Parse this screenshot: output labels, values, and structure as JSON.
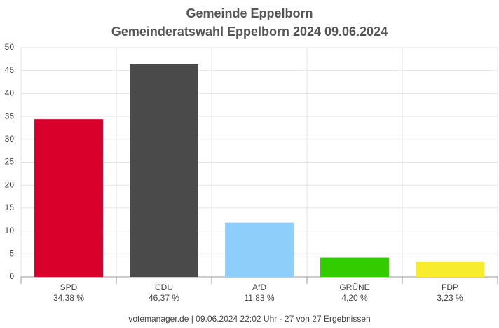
{
  "chart_data": {
    "type": "bar",
    "title": "Gemeinde Eppelborn",
    "subtitle": "Gemeinderatswahl Eppelborn 2024 09.06.2024",
    "categories": [
      "SPD",
      "CDU",
      "AfD",
      "GRÜNE",
      "FDP"
    ],
    "values": [
      34.38,
      46.37,
      11.83,
      4.2,
      3.23
    ],
    "value_labels": [
      "34,38 %",
      "46,37 %",
      "11,83 %",
      "4,20 %",
      "3,23 %"
    ],
    "colors": [
      "#d8002a",
      "#4a4a4a",
      "#8ecefa",
      "#33cc00",
      "#f8ec2e"
    ],
    "ylim": [
      0,
      50
    ],
    "yticks": [
      0,
      5,
      10,
      15,
      20,
      25,
      30,
      35,
      40,
      45,
      50
    ],
    "grid": true,
    "footer": "votemanager.de | 09.06.2024 22:02 Uhr - 27 von 27 Ergebnissen"
  }
}
